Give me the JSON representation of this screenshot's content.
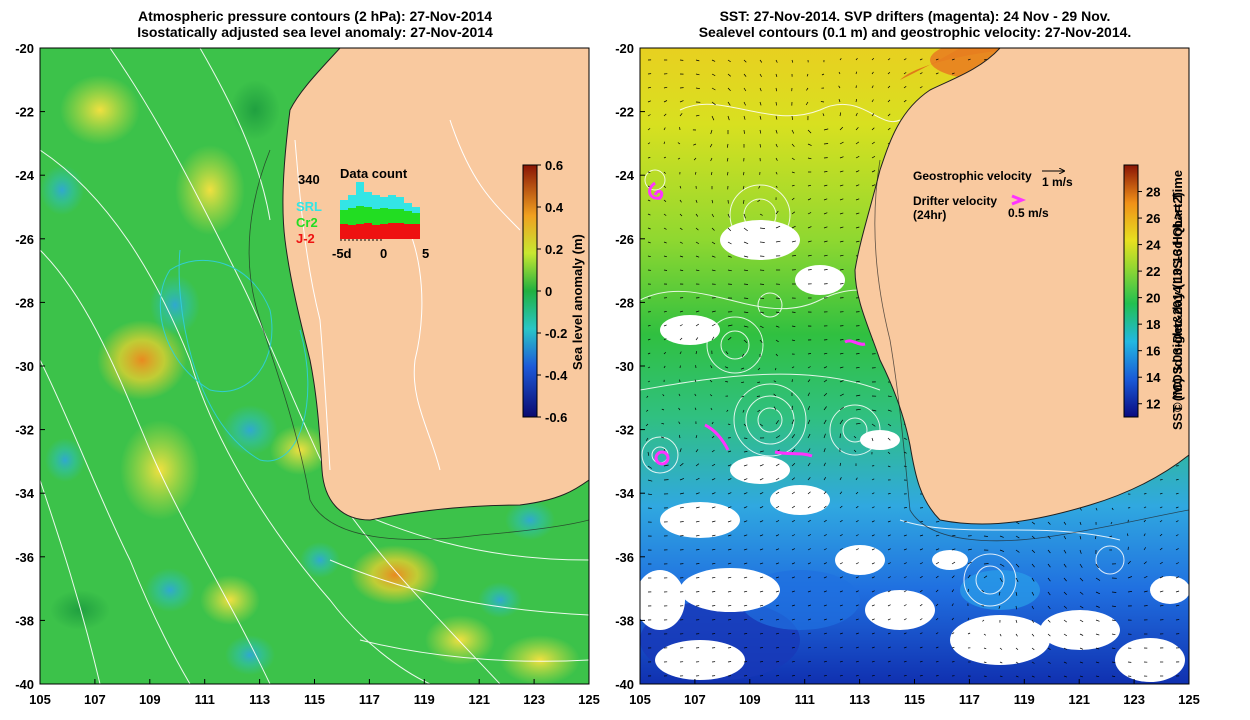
{
  "left_panel": {
    "title_line1": "Atmospheric pressure contours (2 hPa): 27-Nov-2014",
    "title_line2": "Isostatically adjusted sea level anomaly: 27-Nov-2014",
    "colorbar_label": "Sea level anomaly (m)",
    "colorbar_ticks": [
      "0.6",
      "0.4",
      "0.2",
      "0",
      "-0.2",
      "-0.4",
      "-0.6"
    ],
    "colorbar_range": [
      -0.6,
      0.6
    ],
    "inset": {
      "title": "Data count",
      "max_label": "340",
      "legend": [
        {
          "name": "SRL",
          "color": "#33e5e5"
        },
        {
          "name": "Cr2",
          "color": "#22dd22"
        },
        {
          "name": "J-2",
          "color": "#ee1111"
        }
      ],
      "x_ticks": [
        "-5d",
        "0",
        "5"
      ]
    }
  },
  "right_panel": {
    "title_line1": "SST: 27-Nov-2014. SVP drifters (magenta): 24 Nov - 29 Nov.",
    "title_line2": "Sealevel contours (0.1 m) and geostrophic velocity: 27-Nov-2014.",
    "colorbar_label": "SST (°C) 3d night&day (L3S-3d QL>=2)",
    "colorbar_ticks": [
      "28",
      "26",
      "24",
      "22",
      "20",
      "18",
      "16",
      "14",
      "12"
    ],
    "colorbar_range": [
      11,
      30
    ],
    "geostrophic_label": "Geostrophic velocity",
    "geostrophic_scale": "1 m/s",
    "drifter_label_line1": "Drifter velocity",
    "drifter_label_line2": "(24hr)",
    "drifter_scale": "0.5 m/s"
  },
  "axes": {
    "lat_ticks": [
      "-20",
      "-22",
      "-24",
      "-26",
      "-28",
      "-30",
      "-32",
      "-34",
      "-36",
      "-38",
      "-40"
    ],
    "lon_ticks": [
      "105",
      "107",
      "109",
      "111",
      "113",
      "115",
      "117",
      "119",
      "121",
      "123",
      "125"
    ],
    "lat_range": [
      -40,
      -20
    ],
    "lon_range": [
      105,
      125
    ]
  },
  "credit": "© IMOS 03-Dec-2014 10:16 Hobart Time",
  "colors": {
    "land": "#f9c99f",
    "magenta": "#ff33ff",
    "contour": "#ffffff"
  }
}
